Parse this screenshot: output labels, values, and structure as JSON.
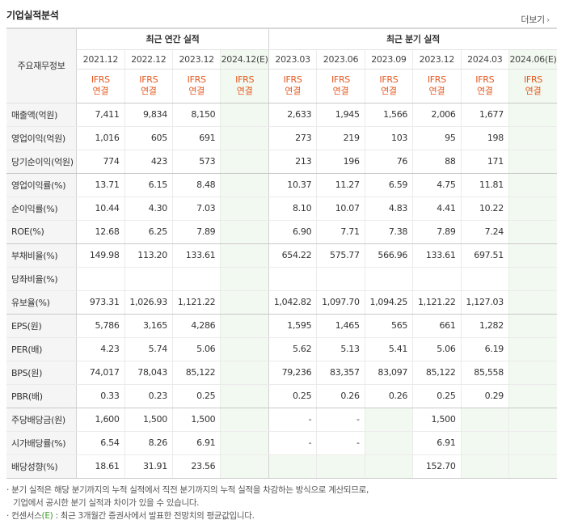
{
  "header": {
    "title": "기업실적분석",
    "more_label": "더보기",
    "more_icon": "chevron-right-icon"
  },
  "table": {
    "corner_label": "주요재무정보",
    "group_annual": "최근 연간 실적",
    "group_quarter": "최근 분기 실적",
    "annual_periods": [
      "2021.12",
      "2022.12",
      "2023.12",
      "2024.12(E)"
    ],
    "quarter_periods": [
      "2023.03",
      "2023.06",
      "2023.09",
      "2023.12",
      "2024.03",
      "2024.06(E)"
    ],
    "basis_top": "IFRS",
    "basis_bottom": "연결",
    "rows": [
      {
        "label": "매출액(억원)",
        "values": [
          "7,411",
          "9,834",
          "8,150",
          "",
          "2,633",
          "1,945",
          "1,566",
          "2,006",
          "1,677",
          ""
        ]
      },
      {
        "label": "영업이익(억원)",
        "values": [
          "1,016",
          "605",
          "691",
          "",
          "273",
          "219",
          "103",
          "95",
          "198",
          ""
        ]
      },
      {
        "label": "당기순이익(억원)",
        "values": [
          "774",
          "423",
          "573",
          "",
          "213",
          "196",
          "76",
          "88",
          "171",
          ""
        ]
      },
      {
        "label": "영업이익률(%)",
        "values": [
          "13.71",
          "6.15",
          "8.48",
          "",
          "10.37",
          "11.27",
          "6.59",
          "4.75",
          "11.81",
          ""
        ]
      },
      {
        "label": "순이익률(%)",
        "values": [
          "10.44",
          "4.30",
          "7.03",
          "",
          "8.10",
          "10.07",
          "4.83",
          "4.41",
          "10.22",
          ""
        ]
      },
      {
        "label": "ROE(%)",
        "values": [
          "12.68",
          "6.25",
          "7.89",
          "",
          "6.90",
          "7.71",
          "7.38",
          "7.89",
          "7.24",
          ""
        ]
      },
      {
        "label": "부채비율(%)",
        "values": [
          "149.98",
          "113.20",
          "133.61",
          "",
          "654.22",
          "575.77",
          "566.96",
          "133.61",
          "697.51",
          ""
        ]
      },
      {
        "label": "당좌비율(%)",
        "values": [
          "",
          "",
          "",
          "",
          "",
          "",
          "",
          "",
          "",
          ""
        ]
      },
      {
        "label": "유보율(%)",
        "values": [
          "973.31",
          "1,026.93",
          "1,121.22",
          "",
          "1,042.82",
          "1,097.70",
          "1,094.25",
          "1,121.22",
          "1,127.03",
          ""
        ]
      },
      {
        "label": "EPS(원)",
        "values": [
          "5,786",
          "3,165",
          "4,286",
          "",
          "1,595",
          "1,465",
          "565",
          "661",
          "1,282",
          ""
        ]
      },
      {
        "label": "PER(배)",
        "values": [
          "4.23",
          "5.74",
          "5.06",
          "",
          "5.62",
          "5.13",
          "5.41",
          "5.06",
          "6.19",
          ""
        ]
      },
      {
        "label": "BPS(원)",
        "values": [
          "74,017",
          "78,043",
          "85,122",
          "",
          "79,236",
          "83,357",
          "83,097",
          "85,122",
          "85,558",
          ""
        ]
      },
      {
        "label": "PBR(배)",
        "values": [
          "0.33",
          "0.23",
          "0.25",
          "",
          "0.25",
          "0.26",
          "0.26",
          "0.25",
          "0.29",
          ""
        ]
      },
      {
        "label": "주당배당금(원)",
        "values": [
          "1,600",
          "1,500",
          "1,500",
          "",
          "-",
          "-",
          "",
          "1,500",
          "",
          ""
        ]
      },
      {
        "label": "시가배당률(%)",
        "values": [
          "6.54",
          "8.26",
          "6.91",
          "",
          "-",
          "-",
          "",
          "6.91",
          "",
          ""
        ]
      },
      {
        "label": "배당성향(%)",
        "values": [
          "18.61",
          "31.91",
          "23.56",
          "",
          "",
          "",
          "",
          "152.70",
          "",
          ""
        ]
      }
    ],
    "group_end_rows": [
      2,
      5,
      8,
      12,
      15
    ]
  },
  "notes": [
    "분기 실적은 해당 분기까지의 누적 실적에서 직전 분기까지의 누적 실적을 차감하는 방식으로 계산되므로,",
    "기업에서 공시한 분기 실적과 차이가 있을 수 있습니다.",
    "컨센서스",
    "(E)",
    ": 최근 3개월간 증권사에서 발표한 전망치의 평균값입니다."
  ],
  "colors": {
    "ifrs": "#e5581f",
    "estimate_bg": "#f2f9f0",
    "label_bg": "#f5f5f5",
    "accent_green": "#3a9d23"
  }
}
